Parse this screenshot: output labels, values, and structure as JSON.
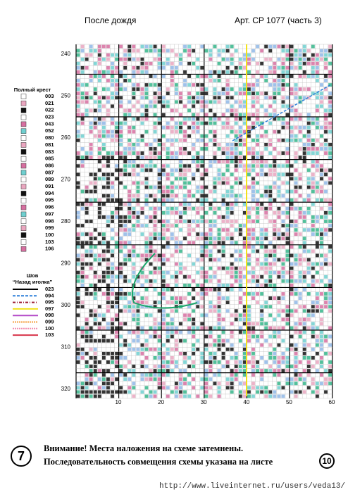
{
  "header": {
    "title": "После дождя",
    "article": "Арт. CP 1077  (часть 3)"
  },
  "row_labels": [
    "240",
    "250",
    "260",
    "270",
    "280",
    "290",
    "300",
    "310",
    "320"
  ],
  "column_labels": [
    "10",
    "20",
    "30",
    "40",
    "50",
    "60"
  ],
  "legend_full_cross": {
    "title": "Полный крест",
    "codes": [
      "003",
      "021",
      "022",
      "023",
      "043",
      "052",
      "080",
      "081",
      "083",
      "085",
      "086",
      "087",
      "089",
      "091",
      "094",
      "095",
      "096",
      "097",
      "098",
      "099",
      "100",
      "103",
      "106"
    ]
  },
  "legend_backstitch": {
    "title": "Шов",
    "subtitle": "“Назад иголка”",
    "codes": [
      "023",
      "094",
      "095",
      "097",
      "098",
      "099",
      "100",
      "103"
    ]
  },
  "footer": {
    "page_left": "7",
    "line1": "Внимание! Места наложения на схеме затемнены.",
    "line2": "Последовательность совмещения схемы указана на листе",
    "page_right": "10"
  },
  "watermark": "http://www.liveinternet.ru/users/veda13/"
}
